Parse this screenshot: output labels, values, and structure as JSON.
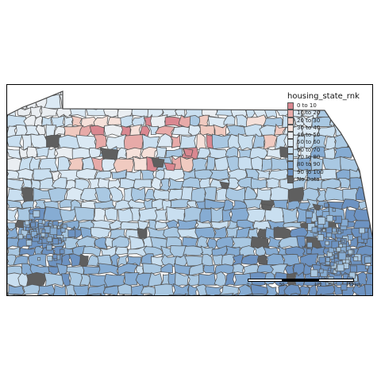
{
  "map": {
    "title": "housing_state_rnk",
    "region": "Pennsylvania",
    "legend": [
      {
        "label": "0 to 10",
        "color": "#d98790"
      },
      {
        "label": "10 to 20",
        "color": "#e7aaa8"
      },
      {
        "label": "20 to 30",
        "color": "#f0cac0"
      },
      {
        "label": "30 to 40",
        "color": "#f6e1da"
      },
      {
        "label": "40 to 50",
        "color": "#eaeef2"
      },
      {
        "label": "50 to 60",
        "color": "#dbe9f4"
      },
      {
        "label": "60 to 70",
        "color": "#c9dff0"
      },
      {
        "label": "70 to 80",
        "color": "#a9c8e2"
      },
      {
        "label": "80 to 90",
        "color": "#86acd3"
      },
      {
        "label": "90 to 100",
        "color": "#6d93c2"
      },
      {
        "label": "No Data",
        "color": "#5f5f5f"
      }
    ],
    "scale_bar": {
      "labels": [
        "0",
        "50",
        "100",
        "150 km"
      ]
    },
    "boundary_color": "#555555"
  }
}
